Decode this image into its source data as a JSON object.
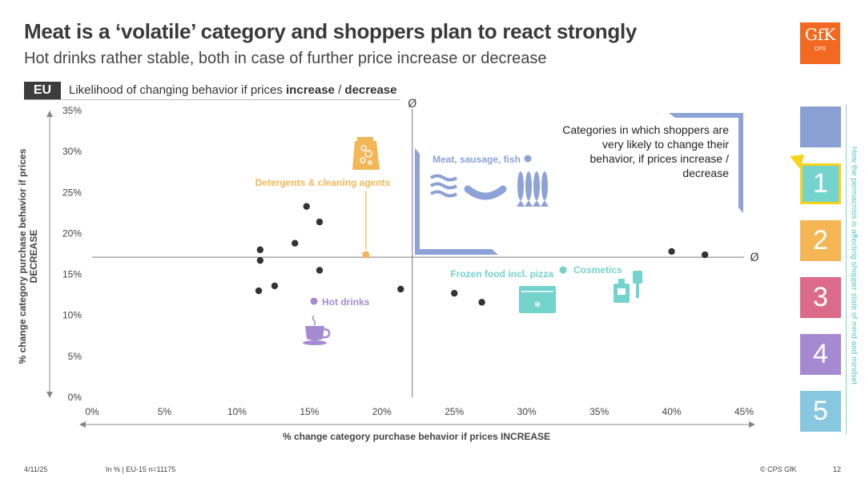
{
  "slide": {
    "title": "Meat is a ‘volatile’ category and shoppers plan to react strongly",
    "subtitle": "Hot drinks rather stable, both in case of further price increase or decrease",
    "logo_text": "GfK",
    "logo_sub": "CPS",
    "region": "EU",
    "question_prefix": "Likelihood of changing behavior if prices ",
    "question_increase": "increase",
    "question_sep": " / ",
    "question_decrease": "decrease",
    "callout": "Categories in which shoppers are very likely to change their behavior, if prices increase / decrease",
    "footer_date": "4/11/25",
    "footer_note": "In % | EU-15 n=11175",
    "footer_copyright": "© CPS GfK",
    "footer_page": "12"
  },
  "sidebar": {
    "caption": "How the permacrisis is affecting shopper state of mind and mindset",
    "boxes": [
      {
        "label": "",
        "color": "#8a9fd4"
      },
      {
        "label": "1",
        "color": "#74d3cd",
        "selected": true
      },
      {
        "label": "2",
        "color": "#f5b655"
      },
      {
        "label": "3",
        "color": "#dc6a8a"
      },
      {
        "label": "4",
        "color": "#a58ad2"
      },
      {
        "label": "5",
        "color": "#87c7df"
      }
    ],
    "pointer_color": "#f6d41a"
  },
  "colors": {
    "dot": "#333333",
    "meat": "#8da2d6",
    "detergents": "#f5b655",
    "hot_drinks": "#a58ad2",
    "frozen": "#74d3cd",
    "cosmetics": "#74d3cd",
    "axis": "#888888"
  },
  "chart_data": {
    "type": "scatter",
    "title": "",
    "xlabel": "% change category purchase behavior if prices INCREASE",
    "ylabel": "% change category purchase behavior if prices DECREASE",
    "xlim": [
      0,
      45
    ],
    "ylim": [
      0,
      35
    ],
    "x_ticks": [
      "0%",
      "5%",
      "10%",
      "15%",
      "20%",
      "25%",
      "30%",
      "35%",
      "40%",
      "45%"
    ],
    "y_ticks": [
      "0%",
      "5%",
      "10%",
      "15%",
      "20%",
      "25%",
      "30%",
      "35%"
    ],
    "average_label": "Ø",
    "average_x": 22.1,
    "average_y": 17.1,
    "points": [
      {
        "x": 11.5,
        "y": 13.0
      },
      {
        "x": 11.6,
        "y": 18.0
      },
      {
        "x": 11.6,
        "y": 16.7
      },
      {
        "x": 12.6,
        "y": 13.6
      },
      {
        "x": 14.0,
        "y": 18.8
      },
      {
        "x": 14.8,
        "y": 23.3
      },
      {
        "x": 15.7,
        "y": 21.4
      },
      {
        "x": 15.7,
        "y": 15.5
      },
      {
        "x": 21.3,
        "y": 13.2
      },
      {
        "x": 25.0,
        "y": 12.7
      },
      {
        "x": 26.9,
        "y": 11.6
      },
      {
        "x": 40.0,
        "y": 17.8
      },
      {
        "x": 42.3,
        "y": 17.4
      }
    ],
    "highlighted": [
      {
        "name": "Detergents & cleaning agents",
        "x": 18.9,
        "y": 17.4,
        "color_key": "detergents"
      },
      {
        "name": "Meat, sausage, fish",
        "x": 30.1,
        "y": 29.1,
        "color_key": "meat"
      },
      {
        "name": "Hot drinks",
        "x": 15.3,
        "y": 11.6,
        "color_key": "hot_drinks"
      },
      {
        "name": "Frozen food incl. pizza",
        "x": 32.5,
        "y": 15.6,
        "color_key": "frozen"
      },
      {
        "name": "Cosmetics",
        "x": 32.5,
        "y": 15.6,
        "color_key": "cosmetics"
      }
    ]
  }
}
